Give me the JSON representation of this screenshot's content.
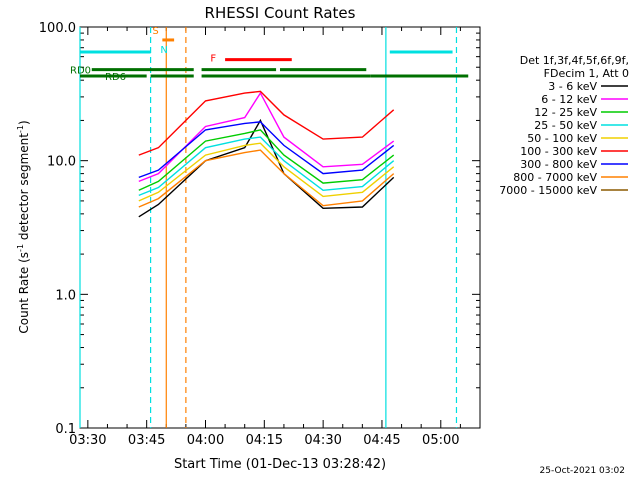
{
  "chart_data": {
    "type": "line",
    "title": "RHESSI Count Rates",
    "xlabel": "Start Time (01-Dec-13 03:28:42)",
    "ylabel_main": "Count Rate (s",
    "ylabel_sup1": "-1",
    "ylabel_mid": " detector segment",
    "ylabel_sup2": "-1",
    "ylabel_end": ")",
    "footer_date": "25-Oct-2021 03:02",
    "x_axis": {
      "min": "03:28",
      "max": "05:10",
      "scale": "time"
    },
    "y_axis": {
      "min": 0.1,
      "max": 100.0,
      "scale": "log"
    },
    "x_ticks": [
      "03:30",
      "03:45",
      "04:00",
      "04:15",
      "04:30",
      "04:45",
      "05:00"
    ],
    "y_ticks": [
      "0.1",
      "1.0",
      "10.0",
      "100.0"
    ],
    "legend_header": [
      "Det 1f,3f,4f,5f,6f,9f,",
      "FDecim 1, Att 0"
    ],
    "series": [
      {
        "name": "3 - 6 keV",
        "color": "#000000",
        "points": [
          [
            "03:43",
            3.8
          ],
          [
            "03:48",
            4.7
          ],
          [
            "04:00",
            10.0
          ],
          [
            "04:10",
            12.5
          ],
          [
            "04:14",
            20.0
          ],
          [
            "04:20",
            8.0
          ],
          [
            "04:30",
            4.4
          ],
          [
            "04:40",
            4.5
          ],
          [
            "04:48",
            7.5
          ]
        ]
      },
      {
        "name": "6 - 12 keV",
        "color": "#ff00ff",
        "points": [
          [
            "03:43",
            7.0
          ],
          [
            "03:48",
            8.0
          ],
          [
            "04:00",
            18.0
          ],
          [
            "04:10",
            21.0
          ],
          [
            "04:14",
            32.0
          ],
          [
            "04:20",
            15.0
          ],
          [
            "04:30",
            9.0
          ],
          [
            "04:40",
            9.4
          ],
          [
            "04:48",
            14.0
          ]
        ]
      },
      {
        "name": "12 - 25 keV",
        "color": "#00cc00",
        "points": [
          [
            "03:43",
            6.0
          ],
          [
            "03:48",
            7.0
          ],
          [
            "04:00",
            14.0
          ],
          [
            "04:10",
            16.0
          ],
          [
            "04:14",
            17.0
          ],
          [
            "04:20",
            11.0
          ],
          [
            "04:30",
            6.8
          ],
          [
            "04:40",
            7.2
          ],
          [
            "04:48",
            11.0
          ]
        ]
      },
      {
        "name": "25 - 50 keV",
        "color": "#00e0e0",
        "points": [
          [
            "03:43",
            5.5
          ],
          [
            "03:48",
            6.3
          ],
          [
            "04:00",
            12.5
          ],
          [
            "04:10",
            14.5
          ],
          [
            "04:14",
            15.0
          ],
          [
            "04:20",
            10.0
          ],
          [
            "04:30",
            6.0
          ],
          [
            "04:40",
            6.4
          ],
          [
            "04:48",
            10.0
          ]
        ]
      },
      {
        "name": "50 - 100 keV",
        "color": "#f0d000",
        "points": [
          [
            "03:43",
            5.0
          ],
          [
            "03:48",
            5.8
          ],
          [
            "04:00",
            11.0
          ],
          [
            "04:10",
            13.0
          ],
          [
            "04:14",
            13.5
          ],
          [
            "04:20",
            9.0
          ],
          [
            "04:30",
            5.4
          ],
          [
            "04:40",
            5.8
          ],
          [
            "04:48",
            9.0
          ]
        ]
      },
      {
        "name": "100 - 300 keV",
        "color": "#ff0000",
        "points": [
          [
            "03:43",
            11.0
          ],
          [
            "03:48",
            12.5
          ],
          [
            "04:00",
            28.0
          ],
          [
            "04:10",
            32.0
          ],
          [
            "04:14",
            33.0
          ],
          [
            "04:20",
            22.0
          ],
          [
            "04:30",
            14.5
          ],
          [
            "04:40",
            15.0
          ],
          [
            "04:48",
            24.0
          ]
        ]
      },
      {
        "name": "300 - 800 keV",
        "color": "#0000ff",
        "points": [
          [
            "03:43",
            7.5
          ],
          [
            "03:48",
            8.5
          ],
          [
            "04:00",
            17.0
          ],
          [
            "04:10",
            19.0
          ],
          [
            "04:14",
            19.5
          ],
          [
            "04:20",
            13.0
          ],
          [
            "04:30",
            8.0
          ],
          [
            "04:40",
            8.5
          ],
          [
            "04:48",
            13.0
          ]
        ]
      },
      {
        "name": "800 - 7000 keV",
        "color": "#ff8000",
        "points": [
          [
            "03:43",
            4.5
          ],
          [
            "03:48",
            5.2
          ],
          [
            "04:00",
            10.0
          ],
          [
            "04:10",
            11.5
          ],
          [
            "04:14",
            12.0
          ],
          [
            "04:20",
            8.0
          ],
          [
            "04:30",
            4.6
          ],
          [
            "04:40",
            5.0
          ],
          [
            "04:48",
            8.0
          ]
        ]
      },
      {
        "name": "7000 - 15000 keV",
        "color": "#8b5a00",
        "points": []
      }
    ],
    "status_bars": {
      "SAA": {
        "label": "S",
        "color": "#ff8000",
        "segments": [
          [
            "03:49",
            "03:52"
          ]
        ]
      },
      "Night": {
        "label": "N",
        "color": "#00e0e0",
        "segments": [
          [
            "03:28",
            "03:46"
          ],
          [
            "04:47",
            "05:03"
          ]
        ]
      },
      "Flare": {
        "label": "F",
        "color": "#ff0000",
        "segments": [
          [
            "04:05",
            "04:22"
          ]
        ]
      },
      "RD0": {
        "label": "RD0",
        "color": "#007000",
        "segments": [
          [
            "03:31",
            "03:57"
          ],
          [
            "03:59",
            "04:18"
          ],
          [
            "04:19",
            "04:41"
          ]
        ]
      },
      "RD6": {
        "label": "RD6",
        "color": "#007000",
        "segments": [
          [
            "03:28",
            "03:45"
          ],
          [
            "03:46",
            "03:57"
          ],
          [
            "03:59",
            "04:42"
          ],
          [
            "04:42",
            "05:07"
          ]
        ]
      }
    },
    "vlines": [
      {
        "time": "03:28",
        "style": "solid",
        "color": "#00e0e0"
      },
      {
        "time": "03:46",
        "style": "dashed",
        "color": "#00e0e0"
      },
      {
        "time": "03:50",
        "style": "solid",
        "color": "#ff8000"
      },
      {
        "time": "03:55",
        "style": "dashed",
        "color": "#ff8000"
      },
      {
        "time": "04:46",
        "style": "solid",
        "color": "#00e0e0"
      },
      {
        "time": "05:04",
        "style": "dashed",
        "color": "#00e0e0"
      }
    ]
  }
}
